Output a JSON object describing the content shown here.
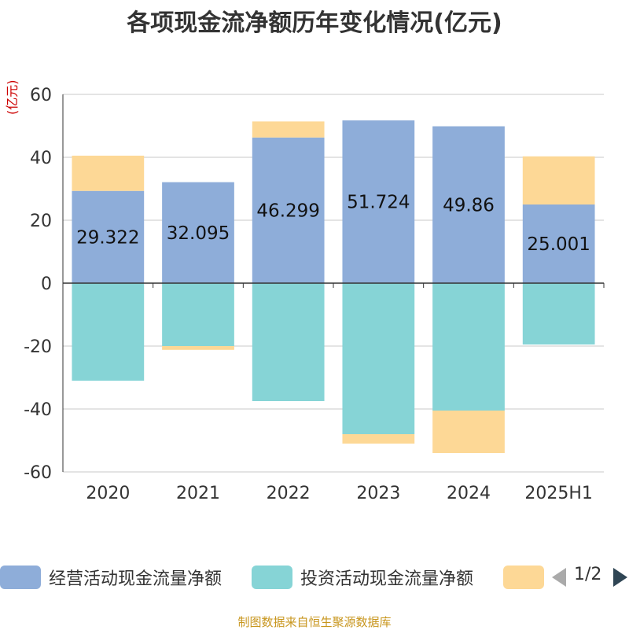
{
  "title": "各项现金流净额历年变化情况(亿元)",
  "unit_label": "(亿元)",
  "source": "制图数据来自恒生聚源数据库",
  "legend": {
    "items": [
      {
        "label": "经营活动现金流量净额",
        "color": "#8eadd9"
      },
      {
        "label": "投资活动现金流量净额",
        "color": "#86d4d6"
      },
      {
        "label": "",
        "color": "#fdd896"
      }
    ],
    "page": "1/2"
  },
  "chart_data": {
    "type": "bar",
    "stacked": true,
    "categories": [
      "2020",
      "2021",
      "2022",
      "2023",
      "2024",
      "2025H1"
    ],
    "ylim": [
      -60,
      60
    ],
    "yticks": [
      60,
      40,
      20,
      0,
      -20,
      -40,
      -60
    ],
    "grid": true,
    "series": [
      {
        "name": "经营活动现金流量净额",
        "color": "#8eadd9",
        "values": [
          29.322,
          32.095,
          46.299,
          51.724,
          49.86,
          25.001
        ],
        "labels": [
          "29.322",
          "32.095",
          "46.299",
          "51.724",
          "49.86",
          "25.001"
        ]
      },
      {
        "name": "投资活动现金流量净额",
        "color": "#86d4d6",
        "values": [
          -31.0,
          -20.0,
          -37.5,
          -48.0,
          -40.5,
          -19.5
        ]
      },
      {
        "color": "#fdd896",
        "values": [
          11.2,
          -1.2,
          5.1,
          -3.0,
          -13.5,
          15.3
        ]
      }
    ]
  }
}
